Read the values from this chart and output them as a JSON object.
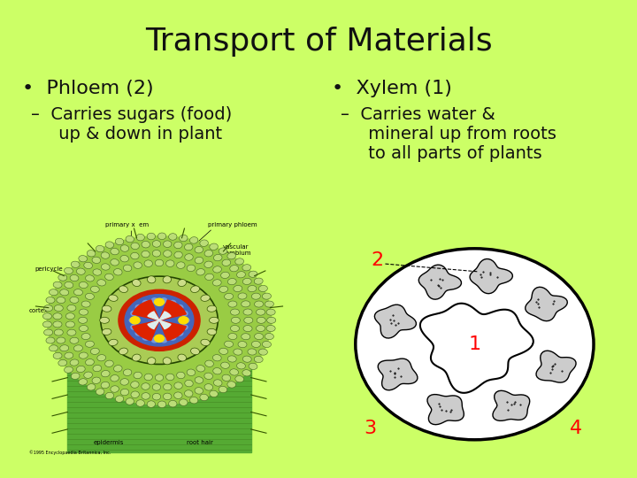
{
  "title": "Transport of Materials",
  "title_fontsize": 26,
  "title_color": "#111111",
  "background_color": "#ccff66",
  "bullet1_header": "•  Phloem (2)",
  "bullet1_sub": "–  Carries sugars (food)\n     up & down in plant",
  "bullet2_header": "•  Xylem (1)",
  "bullet2_sub": "–  Carries water &\n     mineral up from roots\n     to all parts of plants",
  "text_color": "#111111",
  "header_fontsize": 16,
  "sub_fontsize": 14
}
